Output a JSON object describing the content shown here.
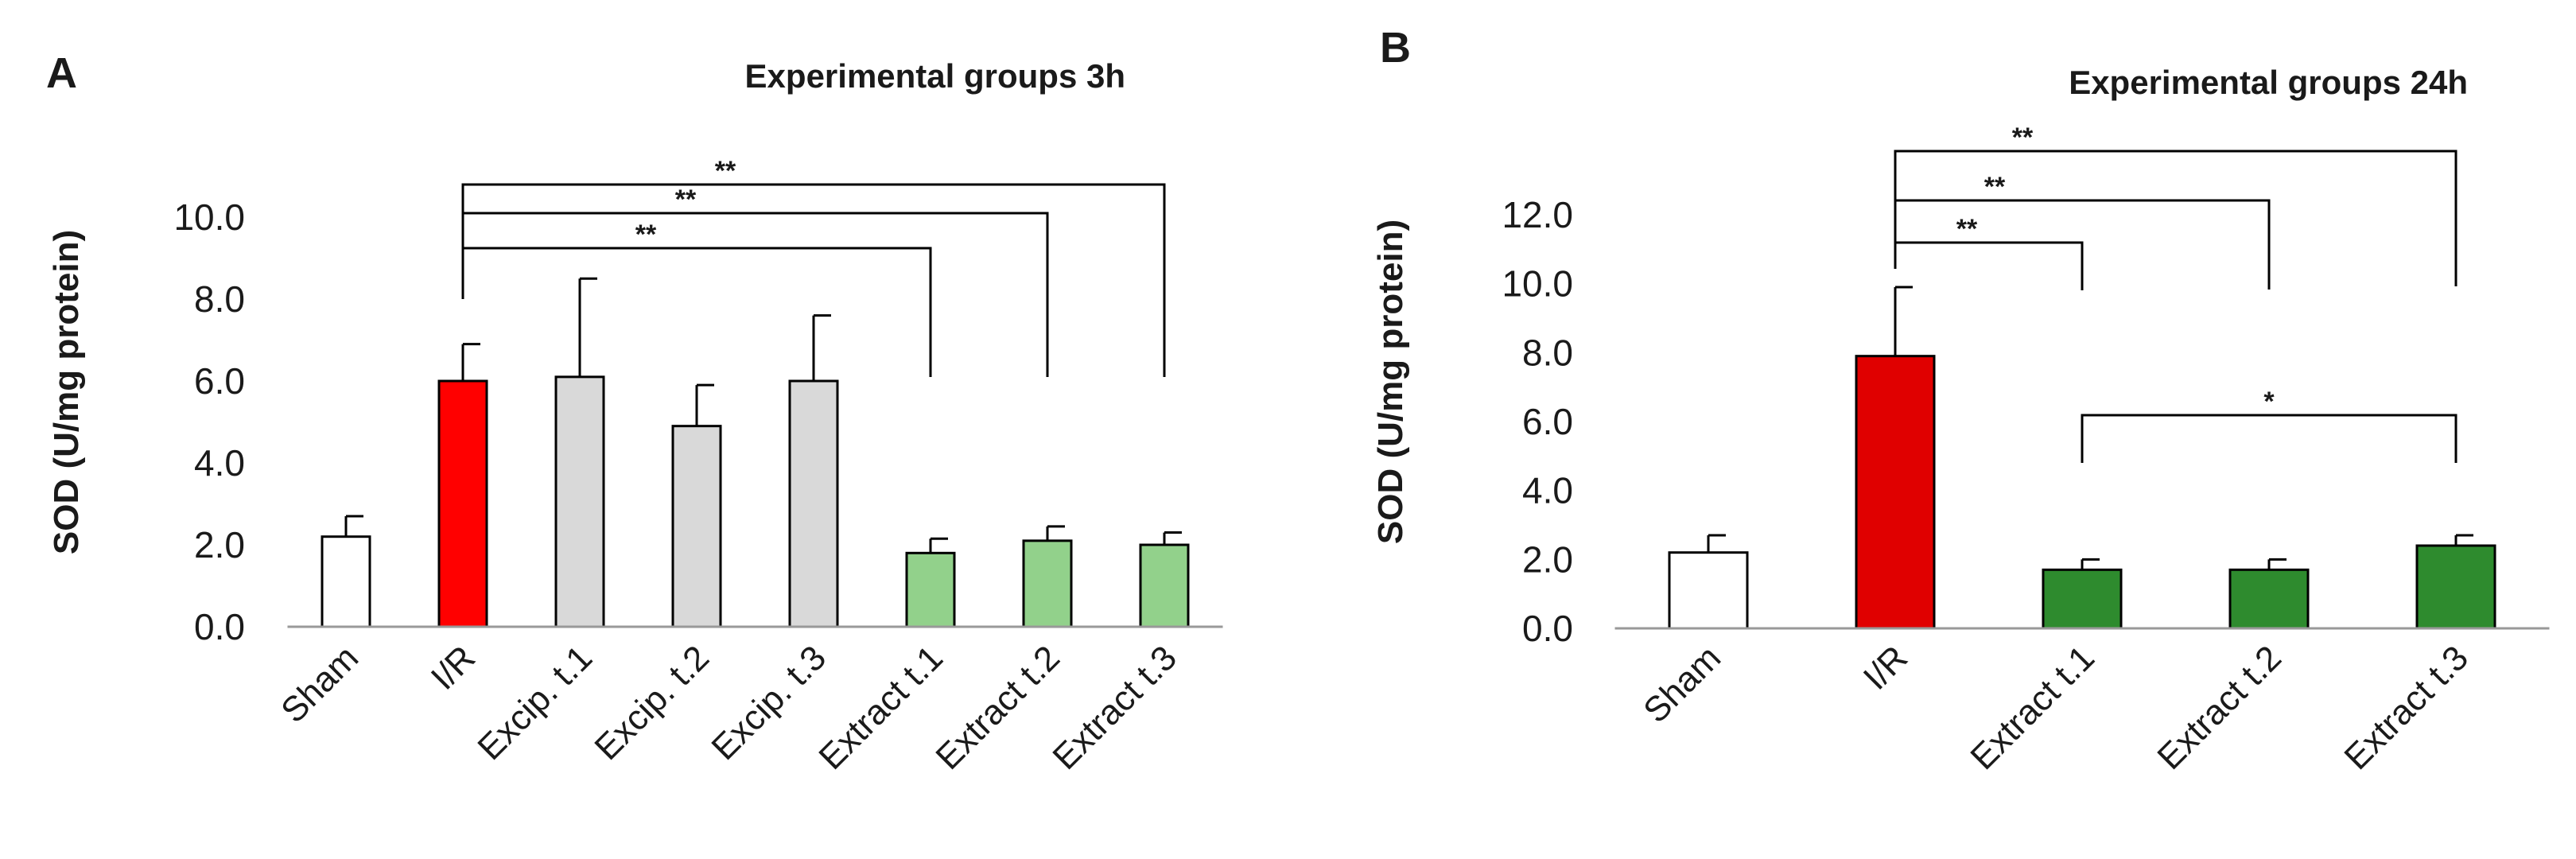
{
  "chart_data": [
    {
      "type": "bar",
      "panel": "A",
      "title": "Experimental groups 3h",
      "xlabel": "",
      "ylabel": "SOD (U/mg protein)",
      "ylim": [
        0,
        10
      ],
      "yticks": [
        "0.0",
        "2.0",
        "4.0",
        "6.0",
        "8.0",
        "10.0"
      ],
      "categories": [
        "Sham",
        "I/R",
        "Excip. t.1",
        "Excip. t.2",
        "Excip. t.3",
        "Extract t.1",
        "Extract t.2",
        "Extract t.3"
      ],
      "values": [
        2.2,
        6.0,
        6.1,
        4.9,
        6.0,
        1.8,
        2.1,
        2.0
      ],
      "errors": [
        0.5,
        0.9,
        2.4,
        1.0,
        1.6,
        0.35,
        0.35,
        0.3
      ],
      "colors": [
        "#ffffff",
        "#ff0000",
        "#d9d9d9",
        "#d9d9d9",
        "#d9d9d9",
        "#92d18b",
        "#92d18b",
        "#92d18b"
      ],
      "significance": [
        {
          "from": 1,
          "to": 5,
          "label": "**"
        },
        {
          "from": 1,
          "to": 6,
          "label": "**"
        },
        {
          "from": 1,
          "to": 7,
          "label": "**"
        }
      ]
    },
    {
      "type": "bar",
      "panel": "B",
      "title": "Experimental groups 24h",
      "xlabel": "",
      "ylabel": "SOD (U/mg protein)",
      "ylim": [
        0,
        12
      ],
      "yticks": [
        "0.0",
        "2.0",
        "4.0",
        "6.0",
        "8.0",
        "10.0",
        "12.0"
      ],
      "categories": [
        "Sham",
        "I/R",
        "Extract t.1",
        "Extract t.2",
        "Extract t.3"
      ],
      "values": [
        2.2,
        7.9,
        1.7,
        1.7,
        2.4
      ],
      "errors": [
        0.5,
        2.0,
        0.3,
        0.3,
        0.3
      ],
      "colors": [
        "#ffffff",
        "#e00000",
        "#2e8b2e",
        "#2e8b2e",
        "#2e8b2e"
      ],
      "significance": [
        {
          "from": 1,
          "to": 2,
          "label": "**"
        },
        {
          "from": 1,
          "to": 3,
          "label": "**"
        },
        {
          "from": 1,
          "to": 4,
          "label": "**"
        },
        {
          "from": 2,
          "to": 4,
          "label": "*"
        }
      ]
    }
  ]
}
